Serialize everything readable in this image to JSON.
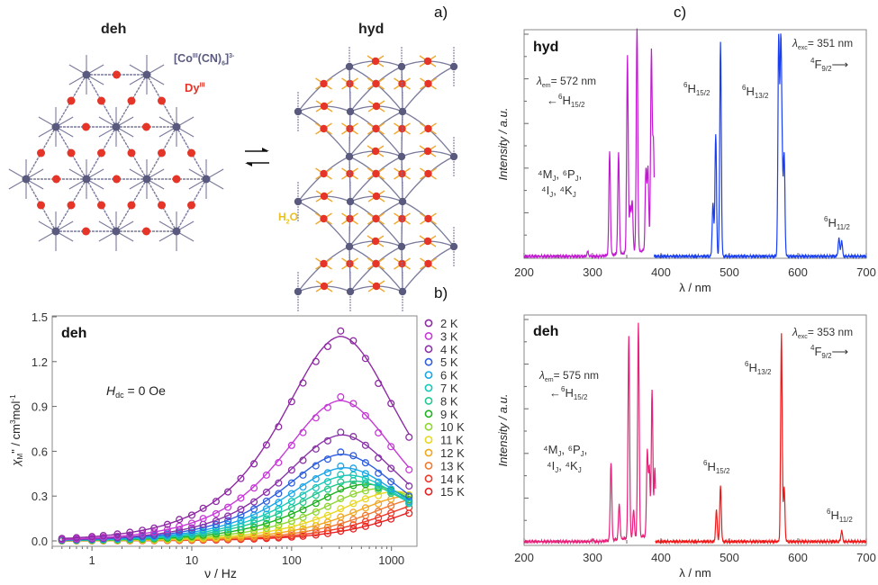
{
  "panels": {
    "a": {
      "label": "a)",
      "left_title": "deh",
      "right_title": "hyd",
      "co_label": "[Co",
      "co_sup": "III",
      "co_mid": "(CN)",
      "co_sub": "6",
      "co_end": "]",
      "co_charge": "3-",
      "dy_label": "Dy",
      "dy_sup": "III",
      "water_label": "H",
      "water_sub": "2",
      "water_end": "O",
      "arrow_symbol": "⇄",
      "colors": {
        "cobalt": "#5a5a7e",
        "dysprosium": "#e53528",
        "water": "#f0a830",
        "bond": "#7a7a9c"
      }
    },
    "b": {
      "label": "b)"
    },
    "c": {
      "label": "c)"
    }
  },
  "chart_data": [
    {
      "id": "ac-susceptibility",
      "type": "line",
      "panel_title": "deh",
      "annotation": {
        "main": "H",
        "sub": "dc",
        "rest": " = 0 Oe"
      },
      "xlabel": "ν / Hz",
      "ylabel": "χM\" / cm³mol⁻¹",
      "ylabel_parts": {
        "chi": "χ",
        "sub": "M",
        "rest": "\" / cm",
        "sup1": "3",
        "mol": "mol",
        "sup2": "-1"
      },
      "xscale": "log",
      "xlim": [
        0.4,
        1800
      ],
      "ylim": [
        0,
        1.5
      ],
      "xticks": [
        1,
        10,
        100,
        1000
      ],
      "xtick_labels": [
        "1",
        "10",
        "100",
        "1000"
      ],
      "yticks": [
        0.0,
        0.3,
        0.6,
        0.9,
        1.2,
        1.5
      ],
      "ytick_labels": [
        "0.0",
        "0.3",
        "0.6",
        "0.9",
        "1.2",
        "1.5"
      ],
      "legend_position": "right-outside",
      "x": [
        0.5,
        0.7,
        1.0,
        1.3,
        1.8,
        2.4,
        3.2,
        4.2,
        5.7,
        7.5,
        10,
        13,
        17.5,
        23,
        31,
        42,
        56,
        74,
        100,
        130,
        175,
        230,
        310,
        415,
        550,
        740,
        990,
        1500
      ],
      "series": [
        {
          "name": "2 K",
          "color": "#8e2aa3",
          "peak_freq": 310,
          "peak_value": 1.37
        },
        {
          "name": "3 K",
          "color": "#c63ad6",
          "peak_freq": 310,
          "peak_value": 0.94
        },
        {
          "name": "4 K",
          "color": "#8a34a8",
          "peak_freq": 320,
          "peak_value": 0.71
        },
        {
          "name": "5 K",
          "color": "#2f5fe0",
          "peak_freq": 320,
          "peak_value": 0.58
        },
        {
          "name": "6 K",
          "color": "#1aa6e8",
          "peak_freq": 340,
          "peak_value": 0.49
        },
        {
          "name": "7 K",
          "color": "#18c8b8",
          "peak_freq": 380,
          "peak_value": 0.44
        },
        {
          "name": "8 K",
          "color": "#22c890",
          "peak_freq": 430,
          "peak_value": 0.4
        },
        {
          "name": "9 K",
          "color": "#1fb21f",
          "peak_freq": 560,
          "peak_value": 0.38
        },
        {
          "name": "10 K",
          "color": "#8fd630",
          "peak_freq": 750,
          "peak_value": 0.35
        },
        {
          "name": "11 K",
          "color": "#e8d820",
          "peak_freq": 1100,
          "peak_value": 0.33
        },
        {
          "name": "12 K",
          "color": "#f0a820",
          "peak_freq": 1500,
          "peak_value": 0.3
        },
        {
          "name": "13 K",
          "color": "#f07a30",
          "peak_freq": 2200,
          "peak_value": 0.29
        },
        {
          "name": "14 K",
          "color": "#f03828",
          "peak_freq": 3000,
          "peak_value": 0.27
        },
        {
          "name": "15 K",
          "color": "#e82020",
          "peak_freq": 4200,
          "peak_value": 0.26
        }
      ]
    },
    {
      "id": "luminescence-hyd",
      "type": "line",
      "panel_title": "hyd",
      "xlabel": "λ / nm",
      "ylabel": "Intensity / a.u.",
      "xlim": [
        200,
        700
      ],
      "xticks": [
        200,
        300,
        400,
        500,
        600,
        700
      ],
      "xtick_labels": [
        "200",
        "300",
        "400",
        "500",
        "600",
        "700"
      ],
      "ylim": [
        0,
        1.0
      ],
      "excitation": {
        "name": "excitation (λem = 572 nm)",
        "color": "#c21ad0",
        "range": [
          200,
          390
        ],
        "peaks": [
          [
            293,
            0.02
          ],
          [
            325,
            0.46
          ],
          [
            338,
            0.45
          ],
          [
            351,
            0.88
          ],
          [
            355,
            0.2
          ],
          [
            358,
            0.23
          ],
          [
            365,
            1.0
          ],
          [
            378,
            0.36
          ],
          [
            381,
            0.37
          ],
          [
            386,
            0.89
          ],
          [
            389,
            0.48
          ]
        ]
      },
      "emission": {
        "name": "emission (λexc = 351 nm)",
        "color": "#1a3ff0",
        "range": [
          390,
          700
        ],
        "peaks": [
          [
            476,
            0.24
          ],
          [
            480,
            0.55
          ],
          [
            487,
            0.96
          ],
          [
            572,
            0.97
          ],
          [
            575,
            0.88
          ],
          [
            577,
            0.4
          ],
          [
            580,
            0.45
          ],
          [
            660,
            0.08
          ],
          [
            664,
            0.07
          ]
        ]
      },
      "annotations": [
        {
          "id": "em-wavelength",
          "lambda_sub": "em",
          "text": "= 572 nm"
        },
        {
          "id": "em-arrow",
          "arrow": "←",
          "sup": "6",
          "term": "H",
          "sub": "15/2"
        },
        {
          "id": "levels-1",
          "text": "⁴M",
          "sub1": "J",
          "text2": ", ⁶P",
          "sub2": "J",
          "text3": ","
        },
        {
          "id": "levels-2",
          "text": "⁴I",
          "sub1": "J",
          "text2": ", ⁴K",
          "sub2": "J"
        },
        {
          "id": "h15",
          "sup": "6",
          "term": "H",
          "sub": "15/2"
        },
        {
          "id": "h13",
          "sup": "6",
          "term": "H",
          "sub": "13/2"
        },
        {
          "id": "exc-wavelength",
          "lambda_sub": "exc",
          "text": "= 351 nm"
        },
        {
          "id": "f92",
          "sup": "4",
          "term": "F",
          "sub": "9/2",
          "arrow": "⟶"
        },
        {
          "id": "h11",
          "sup": "6",
          "term": "H",
          "sub": "11/2"
        }
      ]
    },
    {
      "id": "luminescence-deh",
      "type": "line",
      "panel_title": "deh",
      "xlabel": "λ / nm",
      "ylabel": "Intensity / a.u.",
      "xlim": [
        200,
        700
      ],
      "xticks": [
        200,
        300,
        400,
        500,
        600,
        700
      ],
      "xtick_labels": [
        "200",
        "300",
        "400",
        "500",
        "600",
        "700"
      ],
      "ylim": [
        0,
        1.0
      ],
      "excitation": {
        "name": "excitation (λem = 575 nm)",
        "color": "#e8207a",
        "range": [
          200,
          392
        ],
        "peaks": [
          [
            300,
            0.01
          ],
          [
            327,
            0.35
          ],
          [
            339,
            0.16
          ],
          [
            353,
            0.91
          ],
          [
            360,
            0.12
          ],
          [
            367,
            0.96
          ],
          [
            380,
            0.38
          ],
          [
            383,
            0.3
          ],
          [
            387,
            0.65
          ],
          [
            391,
            0.3
          ]
        ]
      },
      "emission": {
        "name": "emission (λexc = 353 nm)",
        "color": "#f01818",
        "range": [
          392,
          700
        ],
        "peaks": [
          [
            481,
            0.14
          ],
          [
            487,
            0.25
          ],
          [
            576,
            0.93
          ],
          [
            580,
            0.24
          ],
          [
            664,
            0.05
          ]
        ]
      },
      "annotations": [
        {
          "id": "em-wavelength",
          "lambda_sub": "em",
          "text": "= 575 nm"
        },
        {
          "id": "em-arrow",
          "arrow": "←",
          "sup": "6",
          "term": "H",
          "sub": "15/2"
        },
        {
          "id": "levels-1",
          "text": "⁴M",
          "sub1": "J",
          "text2": ", ⁶P",
          "sub2": "J",
          "text3": ","
        },
        {
          "id": "levels-2",
          "text": "⁴I",
          "sub1": "J",
          "text2": ", ⁴K",
          "sub2": "J"
        },
        {
          "id": "h15",
          "sup": "6",
          "term": "H",
          "sub": "15/2"
        },
        {
          "id": "h13",
          "sup": "6",
          "term": "H",
          "sub": "13/2"
        },
        {
          "id": "exc-wavelength",
          "lambda_sub": "exc",
          "text": "= 353 nm"
        },
        {
          "id": "f92",
          "sup": "4",
          "term": "F",
          "sub": "9/2",
          "arrow": "⟶"
        },
        {
          "id": "h11",
          "sup": "6",
          "term": "H",
          "sub": "11/2"
        }
      ]
    }
  ]
}
